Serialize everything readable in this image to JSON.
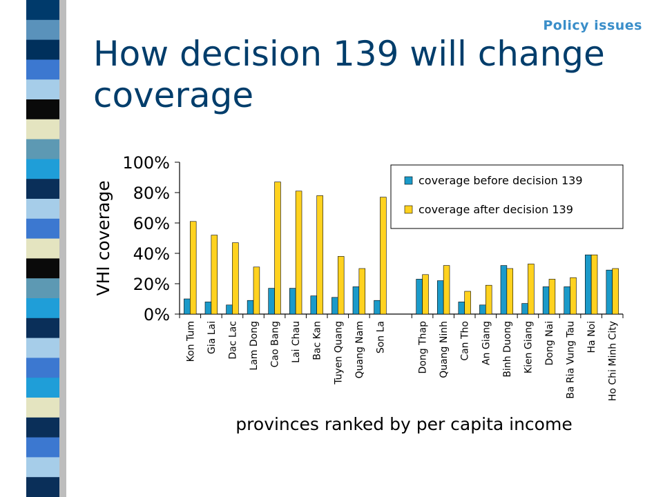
{
  "slide": {
    "section_label": "Policy issues",
    "title": "How decision 139 will change coverage"
  },
  "colors": {
    "title": "#003d6b",
    "section_label": "#3a8ec9",
    "before_bar": "#1b9ac9",
    "after_bar": "#ffd21f",
    "stripe": [
      "#003a6b",
      "#5a92bb",
      "#00305c",
      "#3c78d0",
      "#a6cde9",
      "#0a0a0a",
      "#e4e4c0",
      "#5d99b3",
      "#1f9ed8",
      "#0a2f59",
      "#a6cde9",
      "#3c78d0",
      "#e4e4c0",
      "#0a0a0a",
      "#5d99b3",
      "#1f9ed8",
      "#0a2f59",
      "#a6cde9",
      "#3c78d0",
      "#1f9ed8",
      "#e4e4c0",
      "#0a2f59",
      "#3c78d0",
      "#a6cde9",
      "#0a2f59"
    ]
  },
  "chart_data": {
    "type": "bar",
    "ylabel": "VHI coverage",
    "xlabel": "provinces ranked by per capita income",
    "ylim": [
      0,
      100
    ],
    "y_ticks": [
      "0%",
      "20%",
      "40%",
      "60%",
      "80%",
      "100%"
    ],
    "legend_position": "top-right",
    "groups": [
      [
        "Kon Tum",
        "Gia Lai",
        "Dac Lac",
        "Lam Dong",
        "Cao Bang",
        "Lai Chau",
        "Bac Kan",
        "Tuyen Quang",
        "Quang Nam",
        "Son La"
      ],
      [
        "Dong Thap",
        "Quang Ninh",
        "Can Tho",
        "An Giang",
        "Binh Duong",
        "Kien Giang",
        "Dong Nai",
        "Ba Ria Vung Tau",
        "Ha Noi",
        "Ho Chi Minh City"
      ]
    ],
    "categories": [
      "Kon Tum",
      "Gia Lai",
      "Dac Lac",
      "Lam Dong",
      "Cao Bang",
      "Lai Chau",
      "Bac Kan",
      "Tuyen Quang",
      "Quang Nam",
      "Son La",
      "Dong Thap",
      "Quang Ninh",
      "Can Tho",
      "An Giang",
      "Binh Duong",
      "Kien Giang",
      "Dong Nai",
      "Ba Ria Vung Tau",
      "Ha Noi",
      "Ho Chi Minh City"
    ],
    "series": [
      {
        "name": "coverage before decision 139",
        "values": [
          10,
          8,
          6,
          9,
          17,
          17,
          12,
          11,
          18,
          9,
          23,
          22,
          8,
          6,
          32,
          7,
          18,
          18,
          39,
          29
        ]
      },
      {
        "name": "coverage after decision 139",
        "values": [
          61,
          52,
          47,
          31,
          87,
          81,
          78,
          38,
          30,
          77,
          26,
          32,
          15,
          19,
          30,
          33,
          23,
          24,
          39,
          30
        ]
      }
    ]
  }
}
